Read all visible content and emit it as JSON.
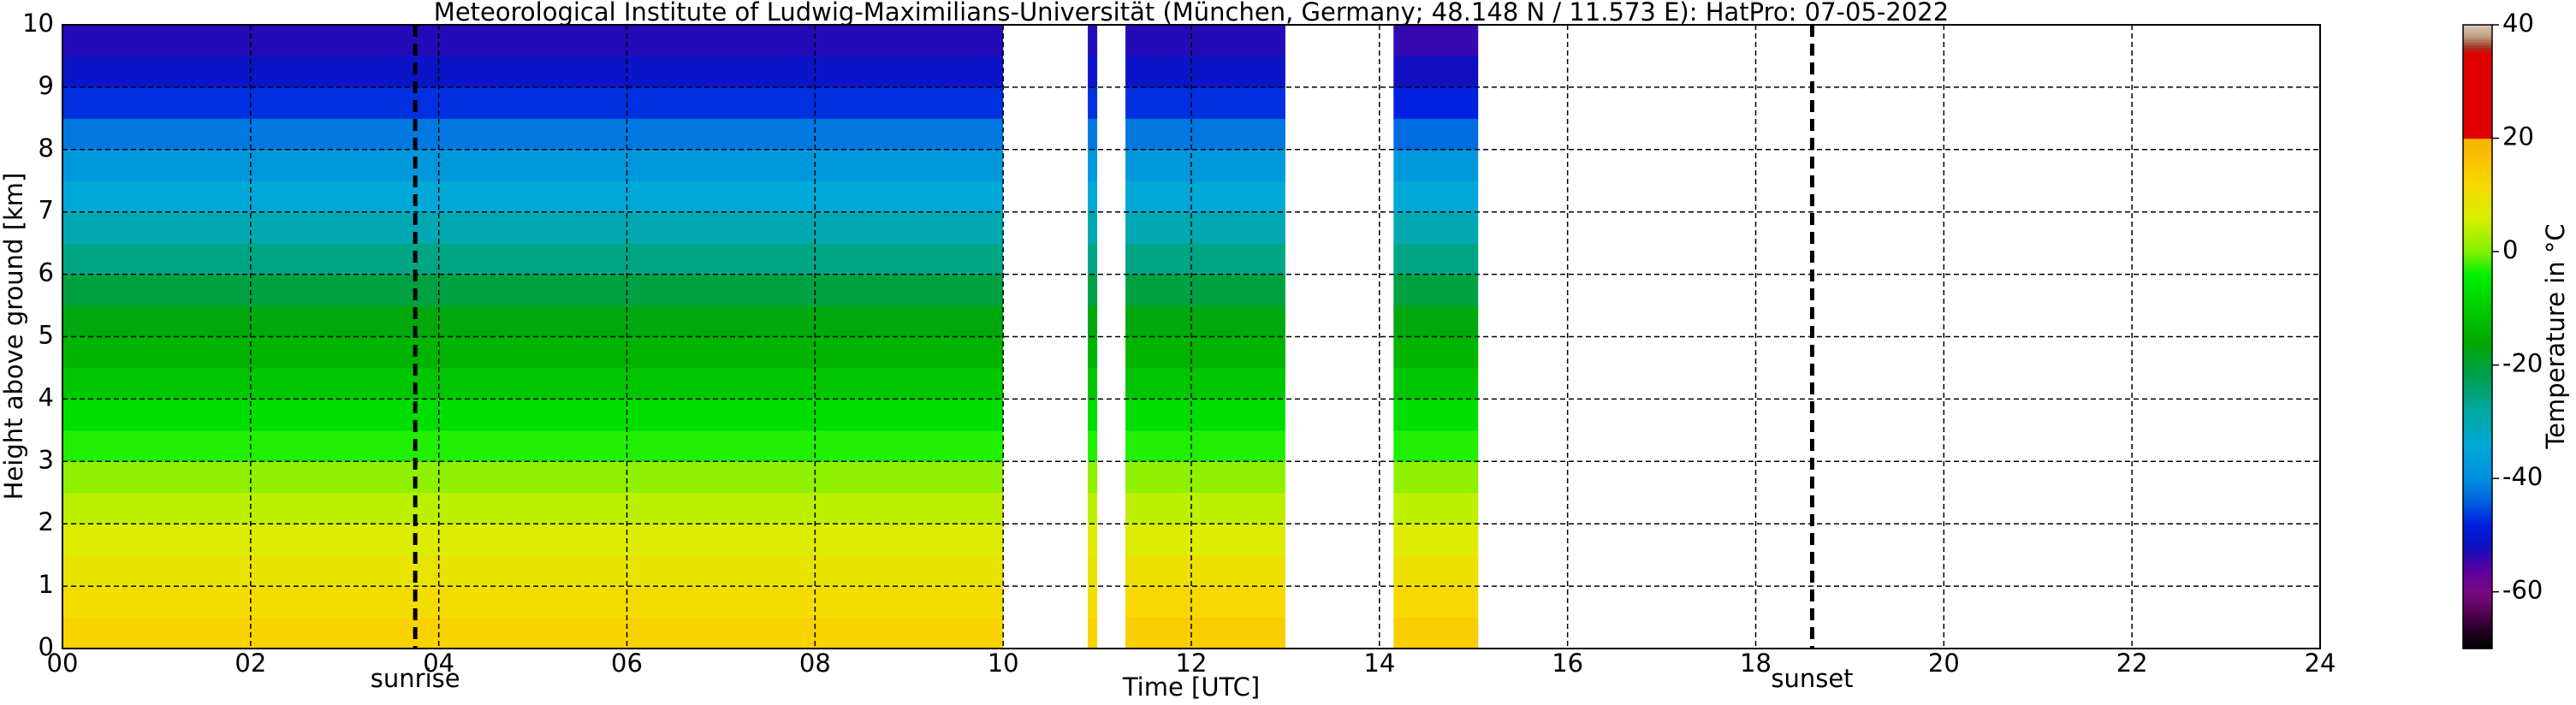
{
  "chart_data": {
    "type": "heatmap",
    "title": "Meteorological Institute of Ludwig-Maximilians-Universität (München, Germany; 48.148 N / 11.573 E):    HatPro: 07-05-2022",
    "x_label": "Time [UTC]",
    "y_label": "Height above ground [km]",
    "colorbar_label": "Temperature in °C",
    "xlim": [
      0,
      24
    ],
    "xticks": [
      {
        "value": 0,
        "label": "00"
      },
      {
        "value": 2,
        "label": "02"
      },
      {
        "value": 4,
        "label": "04"
      },
      {
        "value": 6,
        "label": "06"
      },
      {
        "value": 8,
        "label": "08"
      },
      10,
      12,
      14,
      16,
      18,
      20,
      22,
      24
    ],
    "ylim": [
      0,
      10
    ],
    "yticks": [
      0,
      1,
      2,
      3,
      4,
      5,
      6,
      7,
      8,
      9,
      10
    ],
    "grid": true,
    "clim": [
      -70,
      40
    ],
    "cticks": [
      -60,
      -40,
      -20,
      0,
      20,
      40
    ],
    "colorscale": [
      [
        -70,
        "#000000"
      ],
      [
        -67,
        "#200020"
      ],
      [
        -64,
        "#500050"
      ],
      [
        -60,
        "#7a0a85"
      ],
      [
        -56,
        "#5a00a0"
      ],
      [
        -52,
        "#1010c0"
      ],
      [
        -48,
        "#0020e0"
      ],
      [
        -44,
        "#0060e0"
      ],
      [
        -40,
        "#0090e0"
      ],
      [
        -34,
        "#00a8d8"
      ],
      [
        -28,
        "#00a8a0"
      ],
      [
        -22,
        "#00a050"
      ],
      [
        -16,
        "#00a800"
      ],
      [
        -10,
        "#00cc00"
      ],
      [
        -4,
        "#00f000"
      ],
      [
        0,
        "#80f000"
      ],
      [
        6,
        "#d8f000"
      ],
      [
        12,
        "#f8d800"
      ],
      [
        19.9,
        "#f8b000"
      ],
      [
        20.1,
        "#e00000"
      ],
      [
        35,
        "#e00000"
      ],
      [
        36,
        "#a03020"
      ],
      [
        38,
        "#c0a080"
      ],
      [
        40,
        "#d8c8b8"
      ]
    ],
    "y": [
      0,
      0.5,
      1,
      1.5,
      2,
      2.5,
      3,
      3.5,
      4,
      4.5,
      5,
      5.5,
      6,
      6.5,
      7,
      7.5,
      8,
      8.5,
      9,
      9.5,
      10
    ],
    "blocks": [
      {
        "start": 0,
        "end": 10,
        "values": [
          13,
          11,
          9,
          7,
          4,
          1,
          -3,
          -7,
          -11,
          -14,
          -17,
          -21,
          -26,
          -30,
          -34,
          -38,
          -42,
          -47,
          -51,
          -53
        ]
      },
      {
        "start": 10.9,
        "end": 11.0,
        "values": [
          13,
          11,
          9,
          7,
          4,
          1,
          -3,
          -7,
          -11,
          -14,
          -17,
          -21,
          -26,
          -30,
          -34,
          -38,
          -42,
          -47,
          -51,
          -53
        ]
      },
      {
        "start": 11.3,
        "end": 13.0,
        "values": [
          14,
          12,
          10,
          7,
          4,
          1,
          -3,
          -7,
          -11,
          -14,
          -17,
          -21,
          -26,
          -30,
          -34,
          -38,
          -42,
          -47,
          -51,
          -53
        ]
      },
      {
        "start": 14.15,
        "end": 15.05,
        "values": [
          14,
          12,
          10,
          7,
          4,
          1,
          -3,
          -7,
          -11,
          -14,
          -17,
          -21,
          -26,
          -30,
          -34,
          -38,
          -43,
          -48,
          -52,
          -54
        ]
      }
    ],
    "annotations": [
      {
        "label": "sunrise",
        "x": 3.75
      },
      {
        "label": "sunset",
        "x": 18.6
      }
    ]
  }
}
